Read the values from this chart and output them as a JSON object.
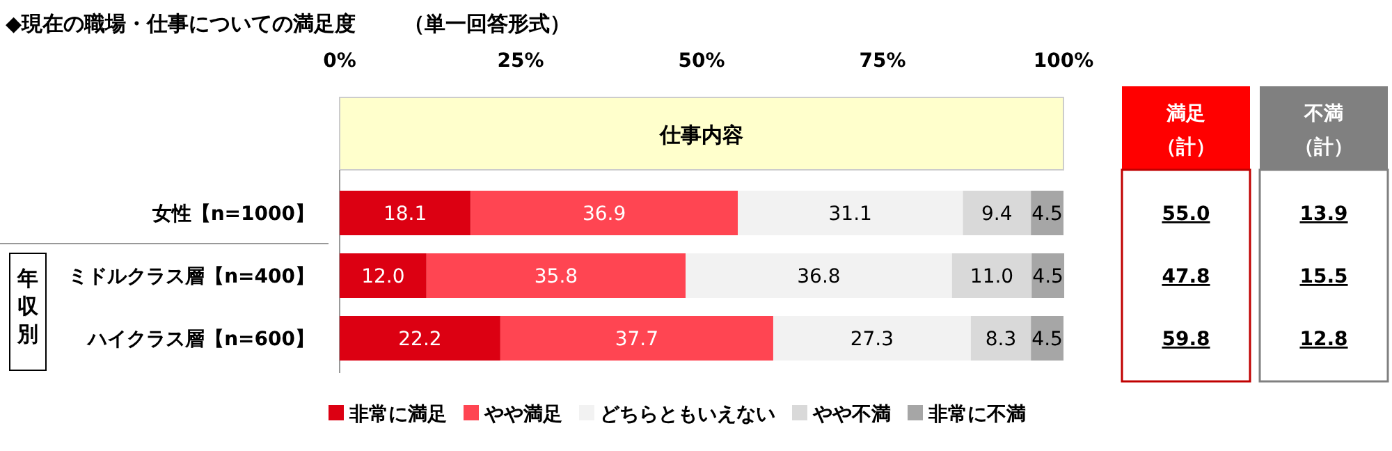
{
  "chart_data": {
    "type": "bar",
    "orientation": "horizontal",
    "stacked": true,
    "title": "◆現在の職場・仕事についての満足度",
    "subtitle": "（単一回答形式）",
    "categories": [
      "女性【n=1000】",
      "ミドルクラス層【n=400】",
      "ハイクラス層【n=600】"
    ],
    "series": [
      {
        "name": "非常に満足",
        "color": "#dc0012",
        "values": [
          18.1,
          12.0,
          22.2
        ],
        "value_labels": [
          "18.1",
          "12.0",
          "22.2"
        ]
      },
      {
        "name": "やや満足",
        "color": "#ff4552",
        "values": [
          36.9,
          35.8,
          37.7
        ],
        "value_labels": [
          "36.9",
          "35.8",
          "37.7"
        ]
      },
      {
        "name": "どちらともいえない",
        "color": "#f2f2f2",
        "values": [
          31.1,
          36.8,
          27.3
        ],
        "value_labels": [
          "31.1",
          "36.8",
          "27.3"
        ]
      },
      {
        "name": "やや不満",
        "color": "#d9d9d9",
        "values": [
          9.4,
          11.0,
          8.3
        ],
        "value_labels": [
          "9.4",
          "11.0",
          "8.3"
        ]
      },
      {
        "name": "非常に不満",
        "color": "#a6a6a6",
        "values": [
          4.5,
          4.5,
          4.5
        ],
        "value_labels": [
          "4.5",
          "4.5",
          "4.5"
        ]
      }
    ],
    "xlim": [
      0,
      100
    ],
    "xticks": [
      {
        "value": 0,
        "label": "0%"
      },
      {
        "value": 25,
        "label": "25%"
      },
      {
        "value": 50,
        "label": "50%"
      },
      {
        "value": 75,
        "label": "75%"
      },
      {
        "value": 100,
        "label": "100%"
      }
    ],
    "legend": "bottom",
    "annotations": [
      "仕事内容",
      "年収別",
      "満足（計）",
      "不満（計）",
      "55.0",
      "47.8",
      "59.8",
      "13.9",
      "15.5",
      "12.8"
    ]
  }
}
